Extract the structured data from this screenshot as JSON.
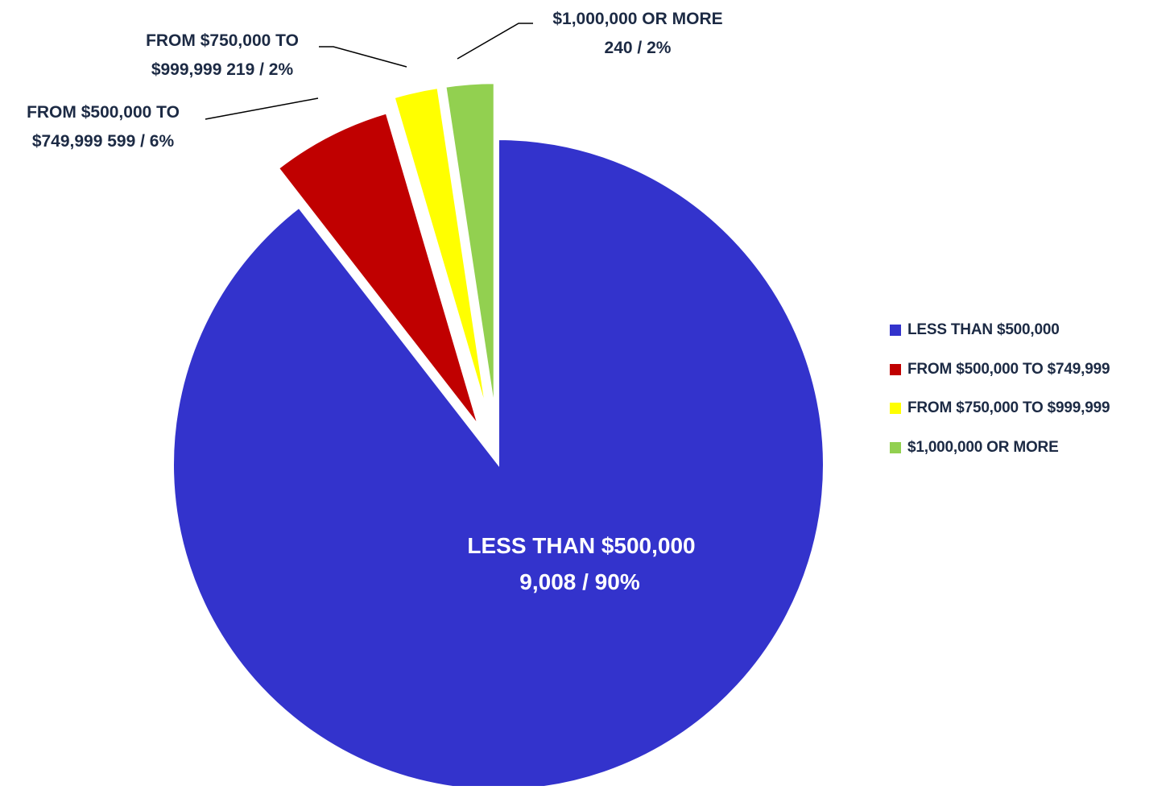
{
  "chart_data": {
    "type": "pie",
    "categories": [
      "LESS THAN $500,000",
      "FROM $500,000 TO $749,999",
      "FROM $750,000 TO $999,999",
      "$1,000,000 OR MORE"
    ],
    "values": [
      9008,
      599,
      219,
      240
    ],
    "percents": [
      "90%",
      "6%",
      "2%",
      "2%"
    ],
    "colors": [
      "#3333cc",
      "#c00000",
      "#ffff00",
      "#92d050"
    ],
    "labels": [
      {
        "line1": "LESS THAN $500,000",
        "line2": "9,008 / 90%"
      },
      {
        "line1": "FROM $500,000 TO",
        "line2": "$749,999 599 / 6%"
      },
      {
        "line1": "FROM $750,000 TO",
        "line2": "$999,999 219 / 2%"
      },
      {
        "line1": "$1,000,000 OR MORE",
        "line2": "240 / 2%"
      }
    ],
    "legend_position": "right",
    "exploded": true,
    "title": ""
  }
}
